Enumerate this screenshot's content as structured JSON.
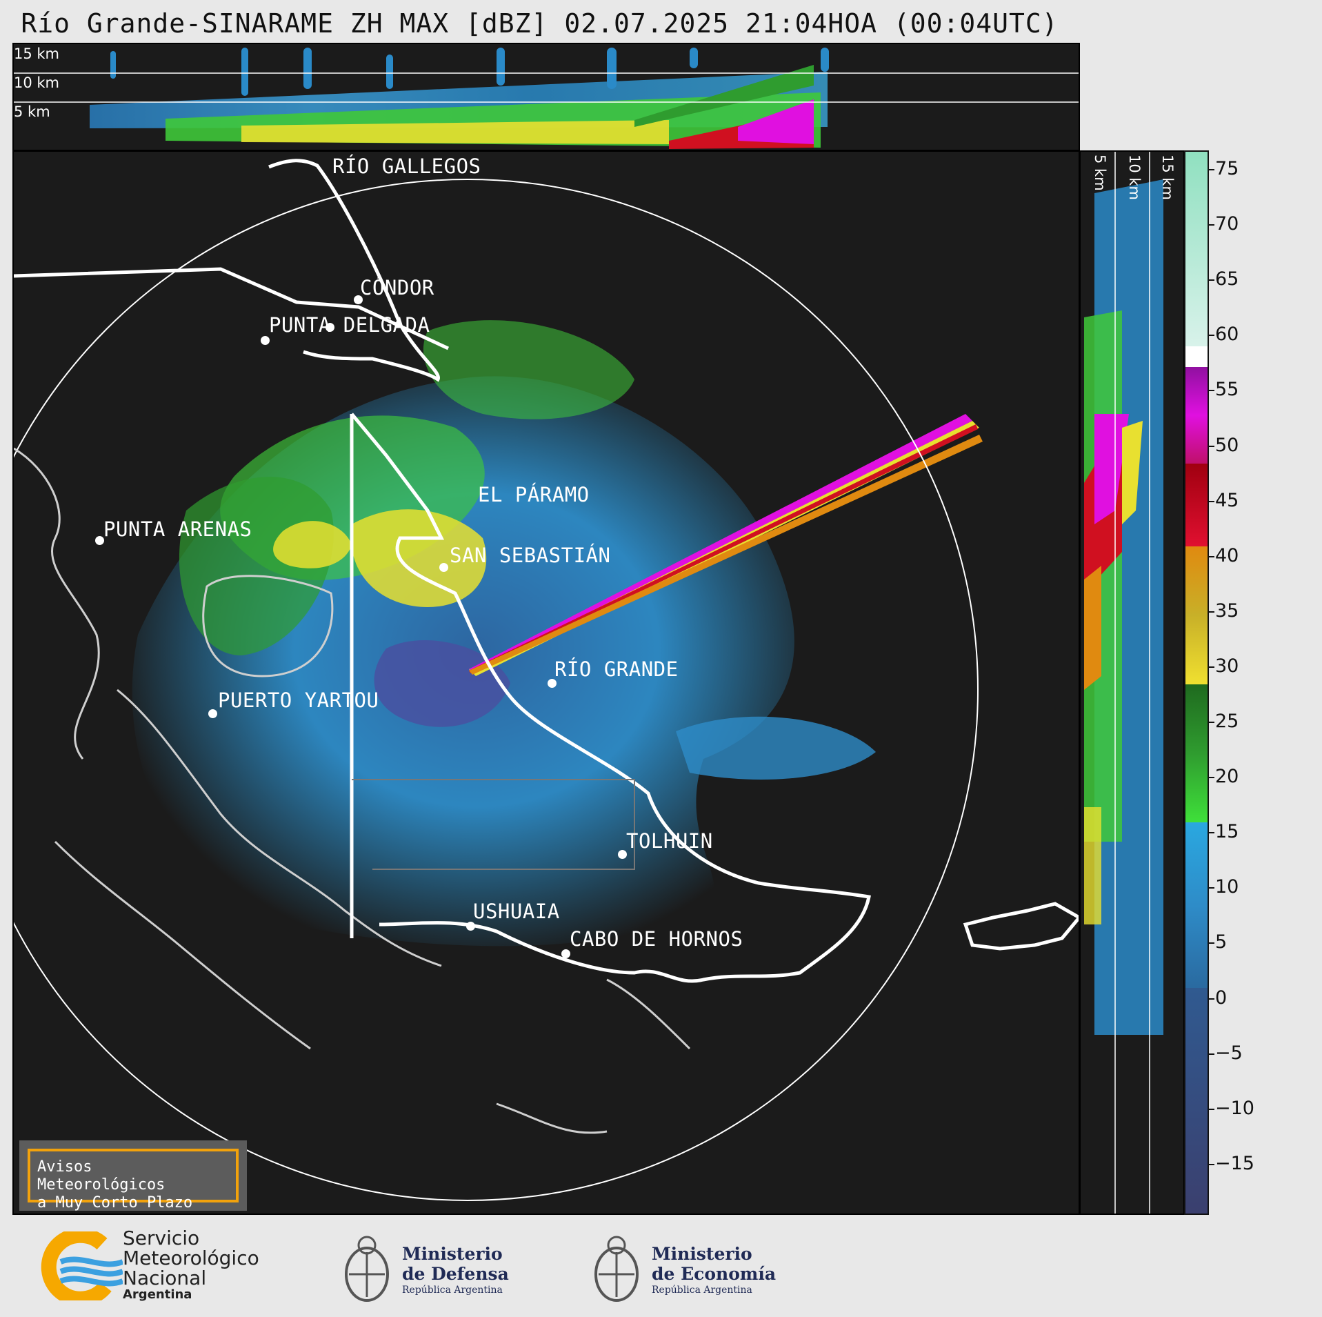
{
  "title": "Río Grande-SINARAME ZH MAX [dBZ] 02.07.2025 21:04HOA (00:04UTC)",
  "top_panel": {
    "altitude_labels": [
      "15 km",
      "10 km",
      "5 km"
    ]
  },
  "side_panel": {
    "altitude_labels": [
      "5 km",
      "10 km",
      "15 km"
    ]
  },
  "map": {
    "cities": [
      {
        "name": "RÍO GALLEGOS"
      },
      {
        "name": "CÓNDOR"
      },
      {
        "name": "PUNTA DELGADA"
      },
      {
        "name": "EL PÁRAMO"
      },
      {
        "name": "PUNTA ARENAS"
      },
      {
        "name": "SAN SEBASTIÁN"
      },
      {
        "name": "RÍO GRANDE"
      },
      {
        "name": "PUERTO YARTOU"
      },
      {
        "name": "TOLHUIN"
      },
      {
        "name": "USHUAIA"
      },
      {
        "name": "CABO DE HORNOS"
      }
    ]
  },
  "colorbar": {
    "unit": "dBZ",
    "ticks": [
      "75",
      "70",
      "65",
      "60",
      "55",
      "50",
      "45",
      "40",
      "35",
      "30",
      "25",
      "20",
      "15",
      "10",
      "5",
      "0",
      "−5",
      "−10",
      "−15"
    ],
    "colors": {
      "low": "#3b3f6e",
      "blue": "#2e8cc8",
      "light_blue": "#2aa8e0",
      "green": "#3fd23a",
      "dark_green": "#1f7a1f",
      "yellow": "#f0e030",
      "orange": "#e08a10",
      "red": "#d01020",
      "magenta": "#e010e0",
      "purple": "#9010a0",
      "white": "#ffffff",
      "mint": "#90e0c0"
    }
  },
  "warning_box": {
    "line1": "Avisos Meteorológicos",
    "line2": "a Muy Corto Plazo"
  },
  "logos": {
    "smn": {
      "line1": "Servicio",
      "line2": "Meteorológico",
      "line3": "Nacional",
      "line4": "Argentina"
    },
    "defensa": {
      "line1": "Ministerio",
      "line2": "de Defensa",
      "line3": "República Argentina"
    },
    "economia": {
      "line1": "Ministerio",
      "line2": "de Economía",
      "line3": "República Argentina"
    }
  }
}
